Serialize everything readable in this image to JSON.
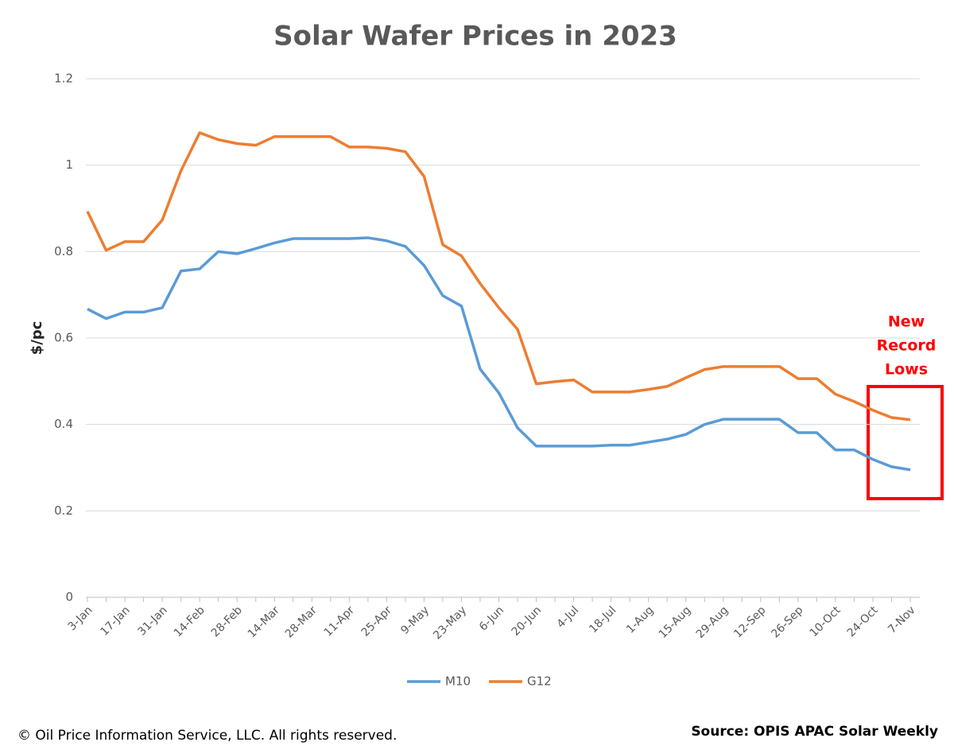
{
  "chart_data": {
    "type": "line",
    "title": "Solar Wafer Prices in 2023",
    "y_label": "$/pc",
    "categories": [
      "3-Jan",
      null,
      "17-Jan",
      null,
      "31-Jan",
      null,
      "14-Feb",
      null,
      "28-Feb",
      null,
      "14-Mar",
      null,
      "28-Mar",
      null,
      "11-Apr",
      null,
      "25-Apr",
      null,
      "9-May",
      null,
      "23-May",
      null,
      "6-Jun",
      null,
      "20-Jun",
      null,
      "4-Jul",
      null,
      "18-Jul",
      null,
      "1-Aug",
      null,
      "15-Aug",
      null,
      "29-Aug",
      null,
      "12-Sep",
      null,
      "26-Sep",
      null,
      "10-Oct",
      null,
      "24-Oct",
      null,
      "7-Nov"
    ],
    "series": [
      {
        "name": "M10",
        "color": "#5b9bd5",
        "values": [
          0.667,
          0.645,
          0.66,
          0.66,
          0.67,
          0.755,
          0.76,
          0.8,
          0.795,
          0.807,
          0.82,
          0.83,
          0.83,
          0.83,
          0.83,
          0.832,
          0.825,
          0.812,
          0.768,
          0.698,
          0.674,
          0.528,
          0.473,
          0.392,
          0.35,
          0.35,
          0.35,
          0.35,
          0.352,
          0.352,
          0.359,
          0.366,
          0.377,
          0.4,
          0.412,
          0.412,
          0.412,
          0.412,
          0.381,
          0.381,
          0.341,
          0.341,
          0.319,
          0.302,
          0.295
        ]
      },
      {
        "name": "G12",
        "color": "#ed7d31",
        "values": [
          0.893,
          0.803,
          0.823,
          0.823,
          0.873,
          0.987,
          1.075,
          1.059,
          1.05,
          1.046,
          1.066,
          1.066,
          1.066,
          1.066,
          1.042,
          1.042,
          1.039,
          1.031,
          0.974,
          0.816,
          0.79,
          0.726,
          0.67,
          0.62,
          0.494,
          0.499,
          0.503,
          0.475,
          0.475,
          0.475,
          0.481,
          0.488,
          0.508,
          0.527,
          0.534,
          0.534,
          0.534,
          0.534,
          0.506,
          0.506,
          0.47,
          0.453,
          0.433,
          0.416,
          0.411
        ]
      }
    ],
    "ylim": [
      0,
      1.2
    ],
    "yticks": [
      0,
      0.2,
      0.4,
      0.6,
      0.8,
      1,
      1.2
    ],
    "grid": true,
    "legend": "bottom",
    "annotation": [
      "New",
      "Record",
      "Lows"
    ],
    "footer": "© Oil Price Information Service, LLC.  All rights reserved.",
    "source": "Source: OPIS APAC Solar Weekly"
  }
}
